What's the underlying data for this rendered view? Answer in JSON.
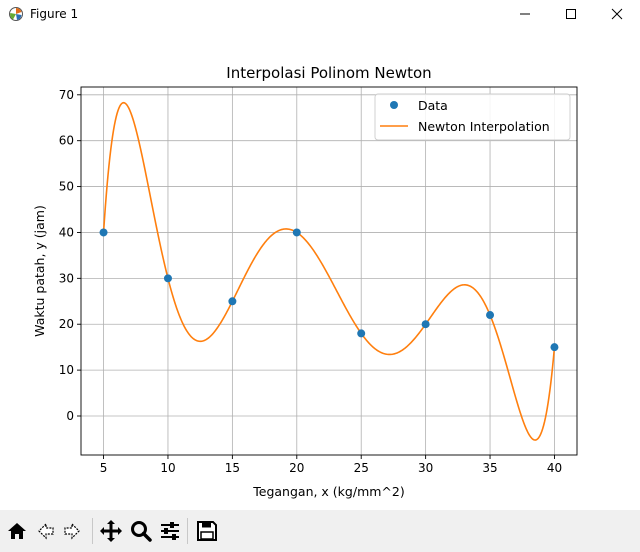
{
  "window": {
    "title": "Figure 1",
    "icons": {
      "app": "matplotlib-figure-icon",
      "minimize": "minimize-icon",
      "maximize": "maximize-icon",
      "close": "close-icon"
    }
  },
  "toolbar": {
    "buttons": [
      {
        "name": "home-button",
        "icon": "home-icon"
      },
      {
        "name": "back-button",
        "icon": "arrow-left-icon"
      },
      {
        "name": "forward-button",
        "icon": "arrow-right-icon"
      },
      {
        "name": "pan-button",
        "icon": "move-icon"
      },
      {
        "name": "zoom-button",
        "icon": "magnifier-icon"
      },
      {
        "name": "configure-subplots-button",
        "icon": "sliders-icon"
      },
      {
        "name": "save-button",
        "icon": "save-icon"
      }
    ]
  },
  "chart_data": {
    "type": "line",
    "title": "Interpolasi Polinom Newton",
    "xlabel": "Tegangan, x (kg/mm^2)",
    "ylabel": "Waktu patah, y (jam)",
    "xlim": [
      3.25,
      41.75
    ],
    "ylim": [
      -8.5,
      71.7
    ],
    "xticks": [
      5,
      10,
      15,
      20,
      25,
      30,
      35,
      40
    ],
    "yticks": [
      0,
      10,
      20,
      30,
      40,
      50,
      60,
      70
    ],
    "grid": true,
    "legend_position": "top-right",
    "series": [
      {
        "name": "Data",
        "style": "markers",
        "color": "#1f77b4",
        "x": [
          5,
          10,
          15,
          20,
          25,
          30,
          35,
          40
        ],
        "y": [
          40,
          30,
          25,
          40,
          18,
          20,
          22,
          15
        ]
      },
      {
        "name": "Newton Interpolation",
        "style": "line",
        "color": "#ff7f0e",
        "curve_type": "Newton divided-difference polynomial through Data points",
        "x_range": [
          5,
          40
        ]
      }
    ]
  }
}
